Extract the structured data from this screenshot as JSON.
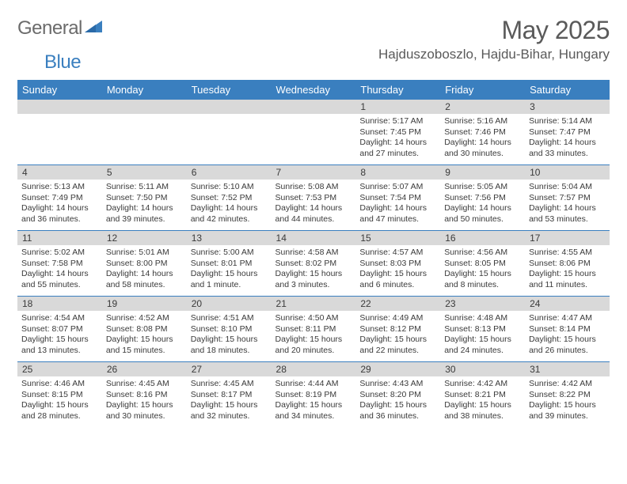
{
  "logo": {
    "text1": "General",
    "text2": "Blue"
  },
  "title": "May 2025",
  "location": "Hajduszoboszlo, Hajdu-Bihar, Hungary",
  "colors": {
    "header_bg": "#3a7fbf",
    "header_fg": "#ffffff",
    "daynum_bg": "#d9d9d9",
    "text": "#3a3a3a",
    "title_text": "#5a5a5a",
    "row_border": "#3a7fbf",
    "background": "#ffffff"
  },
  "dayNames": [
    "Sunday",
    "Monday",
    "Tuesday",
    "Wednesday",
    "Thursday",
    "Friday",
    "Saturday"
  ],
  "weeks": [
    [
      {
        "n": "",
        "sunrise": "",
        "sunset": "",
        "daylight": ""
      },
      {
        "n": "",
        "sunrise": "",
        "sunset": "",
        "daylight": ""
      },
      {
        "n": "",
        "sunrise": "",
        "sunset": "",
        "daylight": ""
      },
      {
        "n": "",
        "sunrise": "",
        "sunset": "",
        "daylight": ""
      },
      {
        "n": "1",
        "sunrise": "Sunrise: 5:17 AM",
        "sunset": "Sunset: 7:45 PM",
        "daylight": "Daylight: 14 hours and 27 minutes."
      },
      {
        "n": "2",
        "sunrise": "Sunrise: 5:16 AM",
        "sunset": "Sunset: 7:46 PM",
        "daylight": "Daylight: 14 hours and 30 minutes."
      },
      {
        "n": "3",
        "sunrise": "Sunrise: 5:14 AM",
        "sunset": "Sunset: 7:47 PM",
        "daylight": "Daylight: 14 hours and 33 minutes."
      }
    ],
    [
      {
        "n": "4",
        "sunrise": "Sunrise: 5:13 AM",
        "sunset": "Sunset: 7:49 PM",
        "daylight": "Daylight: 14 hours and 36 minutes."
      },
      {
        "n": "5",
        "sunrise": "Sunrise: 5:11 AM",
        "sunset": "Sunset: 7:50 PM",
        "daylight": "Daylight: 14 hours and 39 minutes."
      },
      {
        "n": "6",
        "sunrise": "Sunrise: 5:10 AM",
        "sunset": "Sunset: 7:52 PM",
        "daylight": "Daylight: 14 hours and 42 minutes."
      },
      {
        "n": "7",
        "sunrise": "Sunrise: 5:08 AM",
        "sunset": "Sunset: 7:53 PM",
        "daylight": "Daylight: 14 hours and 44 minutes."
      },
      {
        "n": "8",
        "sunrise": "Sunrise: 5:07 AM",
        "sunset": "Sunset: 7:54 PM",
        "daylight": "Daylight: 14 hours and 47 minutes."
      },
      {
        "n": "9",
        "sunrise": "Sunrise: 5:05 AM",
        "sunset": "Sunset: 7:56 PM",
        "daylight": "Daylight: 14 hours and 50 minutes."
      },
      {
        "n": "10",
        "sunrise": "Sunrise: 5:04 AM",
        "sunset": "Sunset: 7:57 PM",
        "daylight": "Daylight: 14 hours and 53 minutes."
      }
    ],
    [
      {
        "n": "11",
        "sunrise": "Sunrise: 5:02 AM",
        "sunset": "Sunset: 7:58 PM",
        "daylight": "Daylight: 14 hours and 55 minutes."
      },
      {
        "n": "12",
        "sunrise": "Sunrise: 5:01 AM",
        "sunset": "Sunset: 8:00 PM",
        "daylight": "Daylight: 14 hours and 58 minutes."
      },
      {
        "n": "13",
        "sunrise": "Sunrise: 5:00 AM",
        "sunset": "Sunset: 8:01 PM",
        "daylight": "Daylight: 15 hours and 1 minute."
      },
      {
        "n": "14",
        "sunrise": "Sunrise: 4:58 AM",
        "sunset": "Sunset: 8:02 PM",
        "daylight": "Daylight: 15 hours and 3 minutes."
      },
      {
        "n": "15",
        "sunrise": "Sunrise: 4:57 AM",
        "sunset": "Sunset: 8:03 PM",
        "daylight": "Daylight: 15 hours and 6 minutes."
      },
      {
        "n": "16",
        "sunrise": "Sunrise: 4:56 AM",
        "sunset": "Sunset: 8:05 PM",
        "daylight": "Daylight: 15 hours and 8 minutes."
      },
      {
        "n": "17",
        "sunrise": "Sunrise: 4:55 AM",
        "sunset": "Sunset: 8:06 PM",
        "daylight": "Daylight: 15 hours and 11 minutes."
      }
    ],
    [
      {
        "n": "18",
        "sunrise": "Sunrise: 4:54 AM",
        "sunset": "Sunset: 8:07 PM",
        "daylight": "Daylight: 15 hours and 13 minutes."
      },
      {
        "n": "19",
        "sunrise": "Sunrise: 4:52 AM",
        "sunset": "Sunset: 8:08 PM",
        "daylight": "Daylight: 15 hours and 15 minutes."
      },
      {
        "n": "20",
        "sunrise": "Sunrise: 4:51 AM",
        "sunset": "Sunset: 8:10 PM",
        "daylight": "Daylight: 15 hours and 18 minutes."
      },
      {
        "n": "21",
        "sunrise": "Sunrise: 4:50 AM",
        "sunset": "Sunset: 8:11 PM",
        "daylight": "Daylight: 15 hours and 20 minutes."
      },
      {
        "n": "22",
        "sunrise": "Sunrise: 4:49 AM",
        "sunset": "Sunset: 8:12 PM",
        "daylight": "Daylight: 15 hours and 22 minutes."
      },
      {
        "n": "23",
        "sunrise": "Sunrise: 4:48 AM",
        "sunset": "Sunset: 8:13 PM",
        "daylight": "Daylight: 15 hours and 24 minutes."
      },
      {
        "n": "24",
        "sunrise": "Sunrise: 4:47 AM",
        "sunset": "Sunset: 8:14 PM",
        "daylight": "Daylight: 15 hours and 26 minutes."
      }
    ],
    [
      {
        "n": "25",
        "sunrise": "Sunrise: 4:46 AM",
        "sunset": "Sunset: 8:15 PM",
        "daylight": "Daylight: 15 hours and 28 minutes."
      },
      {
        "n": "26",
        "sunrise": "Sunrise: 4:45 AM",
        "sunset": "Sunset: 8:16 PM",
        "daylight": "Daylight: 15 hours and 30 minutes."
      },
      {
        "n": "27",
        "sunrise": "Sunrise: 4:45 AM",
        "sunset": "Sunset: 8:17 PM",
        "daylight": "Daylight: 15 hours and 32 minutes."
      },
      {
        "n": "28",
        "sunrise": "Sunrise: 4:44 AM",
        "sunset": "Sunset: 8:19 PM",
        "daylight": "Daylight: 15 hours and 34 minutes."
      },
      {
        "n": "29",
        "sunrise": "Sunrise: 4:43 AM",
        "sunset": "Sunset: 8:20 PM",
        "daylight": "Daylight: 15 hours and 36 minutes."
      },
      {
        "n": "30",
        "sunrise": "Sunrise: 4:42 AM",
        "sunset": "Sunset: 8:21 PM",
        "daylight": "Daylight: 15 hours and 38 minutes."
      },
      {
        "n": "31",
        "sunrise": "Sunrise: 4:42 AM",
        "sunset": "Sunset: 8:22 PM",
        "daylight": "Daylight: 15 hours and 39 minutes."
      }
    ]
  ]
}
